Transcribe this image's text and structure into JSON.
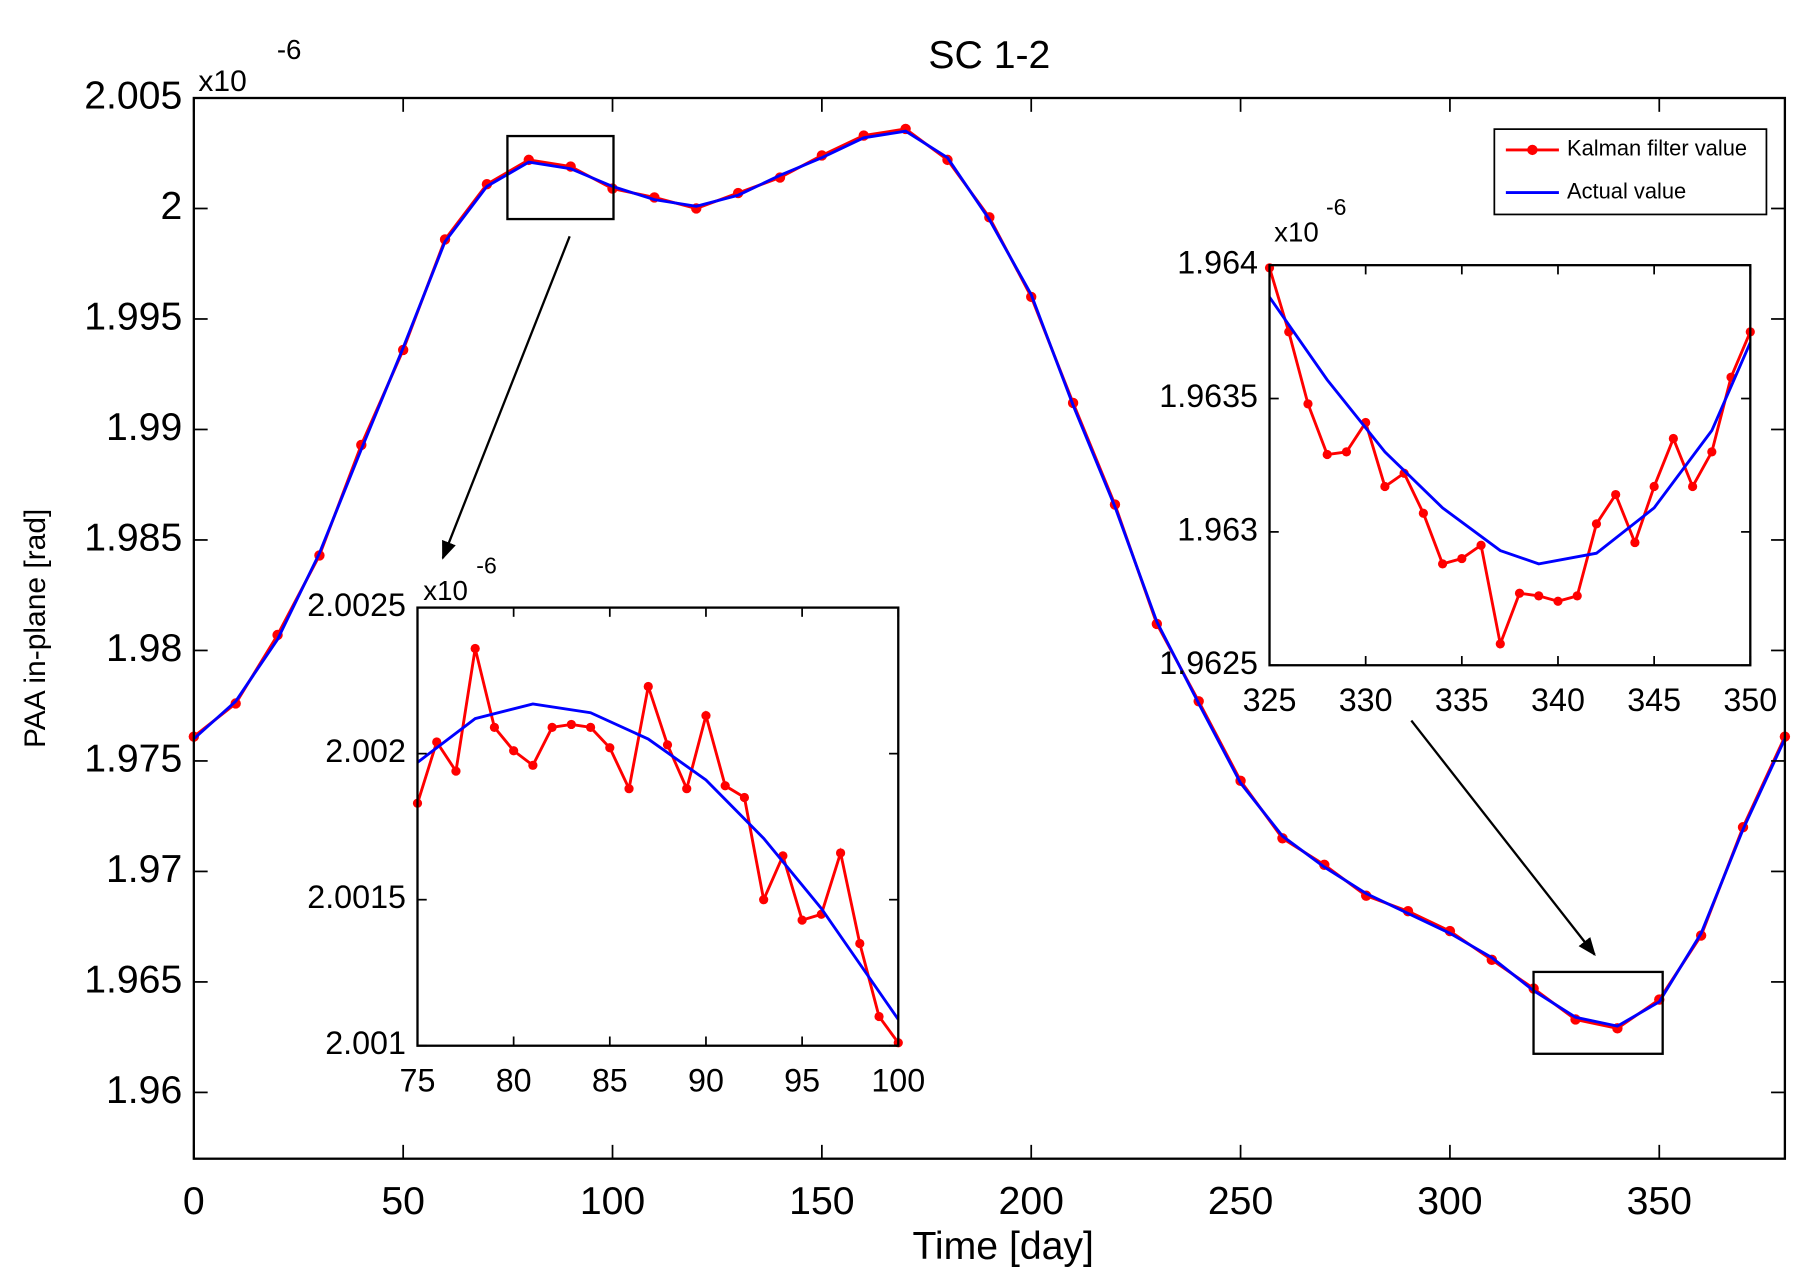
{
  "chart_data": [
    {
      "type": "line",
      "title": "SC 1-2",
      "xlabel": "Time [day]",
      "ylabel": "PAA in-plane [rad]",
      "y_multiplier": "x10",
      "y_exponent": "-6",
      "xlim": [
        0,
        380
      ],
      "xticks": [
        0,
        50,
        100,
        150,
        200,
        250,
        300,
        350
      ],
      "ylim": [
        1.957,
        2.005
      ],
      "yticks": [
        1.96,
        1.965,
        1.97,
        1.975,
        1.98,
        1.985,
        1.99,
        1.995,
        2,
        2.005
      ],
      "legend": "upper right",
      "series": [
        {
          "name": "Kalman filter value",
          "color": "#ff0000",
          "markers": true,
          "x": [
            0,
            10,
            20,
            30,
            40,
            50,
            60,
            70,
            80,
            90,
            100,
            110,
            120,
            130,
            140,
            150,
            160,
            170,
            180,
            190,
            200,
            210,
            220,
            230,
            240,
            250,
            260,
            270,
            280,
            290,
            300,
            310,
            320,
            330,
            340,
            350,
            360,
            370,
            380
          ],
          "values": [
            1.9761,
            1.9776,
            1.9807,
            1.9843,
            1.9893,
            1.9936,
            1.9986,
            2.0011,
            2.0022,
            2.0019,
            2.0009,
            2.0005,
            2.0,
            2.0007,
            2.0014,
            2.0024,
            2.0033,
            2.0036,
            2.0022,
            1.9996,
            1.996,
            1.9912,
            1.9866,
            1.9812,
            1.9777,
            1.9741,
            1.9715,
            1.9703,
            1.9689,
            1.9682,
            1.9673,
            1.966,
            1.9647,
            1.9633,
            1.9629,
            1.9642,
            1.9671,
            1.972,
            1.9761
          ]
        },
        {
          "name": "Actual value",
          "color": "#0000ff",
          "markers": false,
          "x": [
            0,
            10,
            20,
            30,
            40,
            50,
            60,
            70,
            80,
            90,
            100,
            110,
            120,
            130,
            140,
            150,
            160,
            170,
            180,
            190,
            200,
            210,
            220,
            230,
            240,
            250,
            260,
            270,
            280,
            290,
            300,
            310,
            320,
            330,
            340,
            350,
            360,
            370,
            380
          ],
          "values": [
            1.976,
            1.9777,
            1.9805,
            1.9844,
            1.9891,
            1.9937,
            1.9985,
            2.001,
            2.0021,
            2.0018,
            2.001,
            2.0004,
            2.0001,
            2.0006,
            2.0015,
            2.0023,
            2.0032,
            2.0035,
            2.0023,
            1.9995,
            1.9961,
            1.9911,
            1.9865,
            1.9813,
            1.9776,
            1.974,
            1.9716,
            1.9702,
            1.969,
            1.9681,
            1.9672,
            1.9661,
            1.9646,
            1.9634,
            1.963,
            1.9641,
            1.9672,
            1.9719,
            1.976
          ]
        }
      ]
    },
    {
      "type": "line",
      "y_multiplier": "x10",
      "y_exponent": "-6",
      "xlim": [
        75,
        100
      ],
      "xticks": [
        75,
        80,
        85,
        90,
        95,
        100
      ],
      "ylim": [
        2.001,
        2.0025
      ],
      "yticks": [
        2.001,
        2.0015,
        2.002,
        2.0025
      ],
      "series": [
        {
          "color": "#ff0000",
          "markers": true,
          "x": [
            75,
            76,
            77,
            78,
            79,
            80,
            81,
            82,
            83,
            84,
            85,
            86,
            87,
            88,
            89,
            90,
            91,
            92,
            93,
            94,
            95,
            96,
            97,
            98,
            99,
            100
          ],
          "values": [
            2.00183,
            2.00204,
            2.00194,
            2.00236,
            2.00209,
            2.00201,
            2.00196,
            2.00209,
            2.0021,
            2.00209,
            2.00202,
            2.00188,
            2.00223,
            2.00203,
            2.00188,
            2.00213,
            2.00189,
            2.00185,
            2.0015,
            2.00165,
            2.00143,
            2.00145,
            2.00166,
            2.00135,
            2.0011,
            2.00101
          ]
        },
        {
          "color": "#0000ff",
          "markers": false,
          "x": [
            75,
            78,
            81,
            84,
            87,
            90,
            93,
            96,
            100
          ],
          "values": [
            2.00197,
            2.00212,
            2.00217,
            2.00214,
            2.00205,
            2.00191,
            2.00171,
            2.00147,
            2.00109
          ]
        }
      ]
    },
    {
      "type": "line",
      "y_multiplier": "x10",
      "y_exponent": "-6",
      "xlim": [
        325,
        350
      ],
      "xticks": [
        325,
        330,
        335,
        340,
        345,
        350
      ],
      "ylim": [
        1.9625,
        1.964
      ],
      "yticks": [
        1.9625,
        1.963,
        1.9635,
        1.964
      ],
      "series": [
        {
          "color": "#ff0000",
          "markers": true,
          "x": [
            325,
            326,
            327,
            328,
            329,
            330,
            331,
            332,
            333,
            334,
            335,
            336,
            337,
            338,
            339,
            340,
            341,
            342,
            343,
            344,
            345,
            346,
            347,
            348,
            349,
            350
          ],
          "values": [
            1.96399,
            1.96375,
            1.96348,
            1.96329,
            1.9633,
            1.96341,
            1.96317,
            1.96322,
            1.96307,
            1.96288,
            1.9629,
            1.96295,
            1.96258,
            1.96277,
            1.96276,
            1.96274,
            1.96276,
            1.96303,
            1.96314,
            1.96296,
            1.96317,
            1.96335,
            1.96317,
            1.9633,
            1.96358,
            1.96375
          ]
        },
        {
          "color": "#0000ff",
          "markers": false,
          "x": [
            325,
            328,
            331,
            334,
            337,
            339,
            342,
            345,
            348,
            350
          ],
          "values": [
            1.96388,
            1.96357,
            1.9633,
            1.96309,
            1.96293,
            1.96288,
            1.96292,
            1.96309,
            1.96338,
            1.96371
          ]
        }
      ]
    }
  ]
}
